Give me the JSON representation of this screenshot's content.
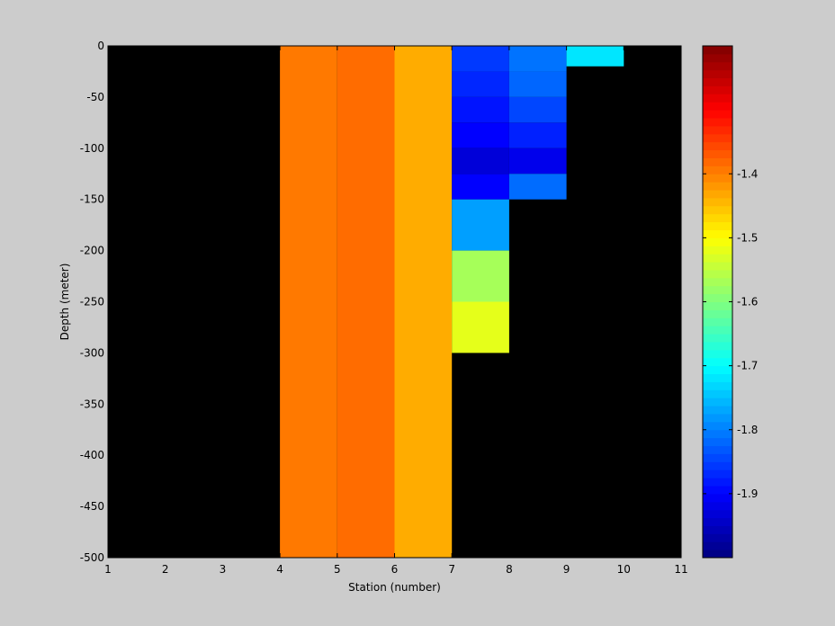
{
  "chart_data": {
    "type": "heatmap",
    "xlabel": "Station (number)",
    "ylabel": "Depth (meter)",
    "xlim": [
      1,
      11
    ],
    "ylim": [
      -500,
      0
    ],
    "x_ticks": [
      1,
      2,
      3,
      4,
      5,
      6,
      7,
      8,
      9,
      10,
      11
    ],
    "y_ticks": [
      0,
      -50,
      -100,
      -150,
      -200,
      -250,
      -300,
      -350,
      -400,
      -450,
      -500
    ],
    "background_color": "#000000",
    "colorbar": {
      "colormap": "jet",
      "range": [
        -2.0,
        -1.2
      ],
      "ticks": [
        -1.4,
        -1.5,
        -1.6,
        -1.7,
        -1.8,
        -1.9
      ]
    },
    "cells": [
      {
        "station_start": 4,
        "station_end": 5,
        "depth_top": 0,
        "depth_bottom": -500,
        "value": -1.395
      },
      {
        "station_start": 5,
        "station_end": 6,
        "depth_top": 0,
        "depth_bottom": -500,
        "value": -1.385
      },
      {
        "station_start": 6,
        "station_end": 7,
        "depth_top": 0,
        "depth_bottom": -500,
        "value": -1.435
      },
      {
        "station_start": 7,
        "station_end": 8,
        "depth_top": 0,
        "depth_bottom": -25,
        "value": -1.855
      },
      {
        "station_start": 7,
        "station_end": 8,
        "depth_top": -25,
        "depth_bottom": -50,
        "value": -1.87
      },
      {
        "station_start": 7,
        "station_end": 8,
        "depth_top": -50,
        "depth_bottom": -75,
        "value": -1.885
      },
      {
        "station_start": 7,
        "station_end": 8,
        "depth_top": -75,
        "depth_bottom": -100,
        "value": -1.9
      },
      {
        "station_start": 7,
        "station_end": 8,
        "depth_top": -100,
        "depth_bottom": -125,
        "value": -1.93
      },
      {
        "station_start": 7,
        "station_end": 8,
        "depth_top": -125,
        "depth_bottom": -150,
        "value": -1.9
      },
      {
        "station_start": 7,
        "station_end": 8,
        "depth_top": -150,
        "depth_bottom": -200,
        "value": -1.775
      },
      {
        "station_start": 7,
        "station_end": 8,
        "depth_top": -200,
        "depth_bottom": -250,
        "value": -1.57
      },
      {
        "station_start": 7,
        "station_end": 8,
        "depth_top": -250,
        "depth_bottom": -300,
        "value": -1.52
      },
      {
        "station_start": 8,
        "station_end": 9,
        "depth_top": 0,
        "depth_bottom": -25,
        "value": -1.81
      },
      {
        "station_start": 8,
        "station_end": 9,
        "depth_top": -25,
        "depth_bottom": -50,
        "value": -1.82
      },
      {
        "station_start": 8,
        "station_end": 9,
        "depth_top": -50,
        "depth_bottom": -75,
        "value": -1.845
      },
      {
        "station_start": 8,
        "station_end": 9,
        "depth_top": -75,
        "depth_bottom": -100,
        "value": -1.875
      },
      {
        "station_start": 8,
        "station_end": 9,
        "depth_top": -100,
        "depth_bottom": -125,
        "value": -1.915
      },
      {
        "station_start": 8,
        "station_end": 9,
        "depth_top": -125,
        "depth_bottom": -150,
        "value": -1.815
      },
      {
        "station_start": 9,
        "station_end": 10,
        "depth_top": 0,
        "depth_bottom": -20,
        "value": -1.72
      }
    ]
  }
}
